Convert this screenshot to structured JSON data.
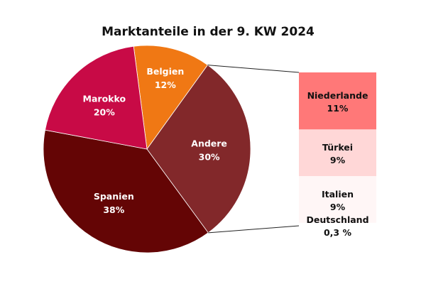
{
  "chart_data": {
    "type": "pie",
    "title": "Marktanteile in der 9. KW 2024",
    "slices": [
      {
        "label": "Belgien",
        "value": 12,
        "value_label": "12%",
        "color": "#f07814"
      },
      {
        "label": "Andere",
        "value": 30,
        "value_label": "30%",
        "color": "#82282a"
      },
      {
        "label": "Spanien",
        "value": 38,
        "value_label": "38%",
        "color": "#640505"
      },
      {
        "label": "Marokko",
        "value": 20,
        "value_label": "20%",
        "color": "#c80a46"
      }
    ],
    "breakdown_of": "Andere",
    "breakdown": [
      {
        "label": "Niederlande",
        "value": 11,
        "value_label": "11%",
        "color": "#ff7878"
      },
      {
        "label": "Türkei",
        "value": 9,
        "value_label": "9%",
        "color": "#ffd7d7"
      },
      {
        "label": "Italien",
        "value": 9,
        "value_label": "9%",
        "color": "#fff6f6"
      },
      {
        "label": "Deutschland",
        "value": 0.3,
        "value_label": "0,3 %",
        "color": "#ffffff"
      }
    ]
  }
}
